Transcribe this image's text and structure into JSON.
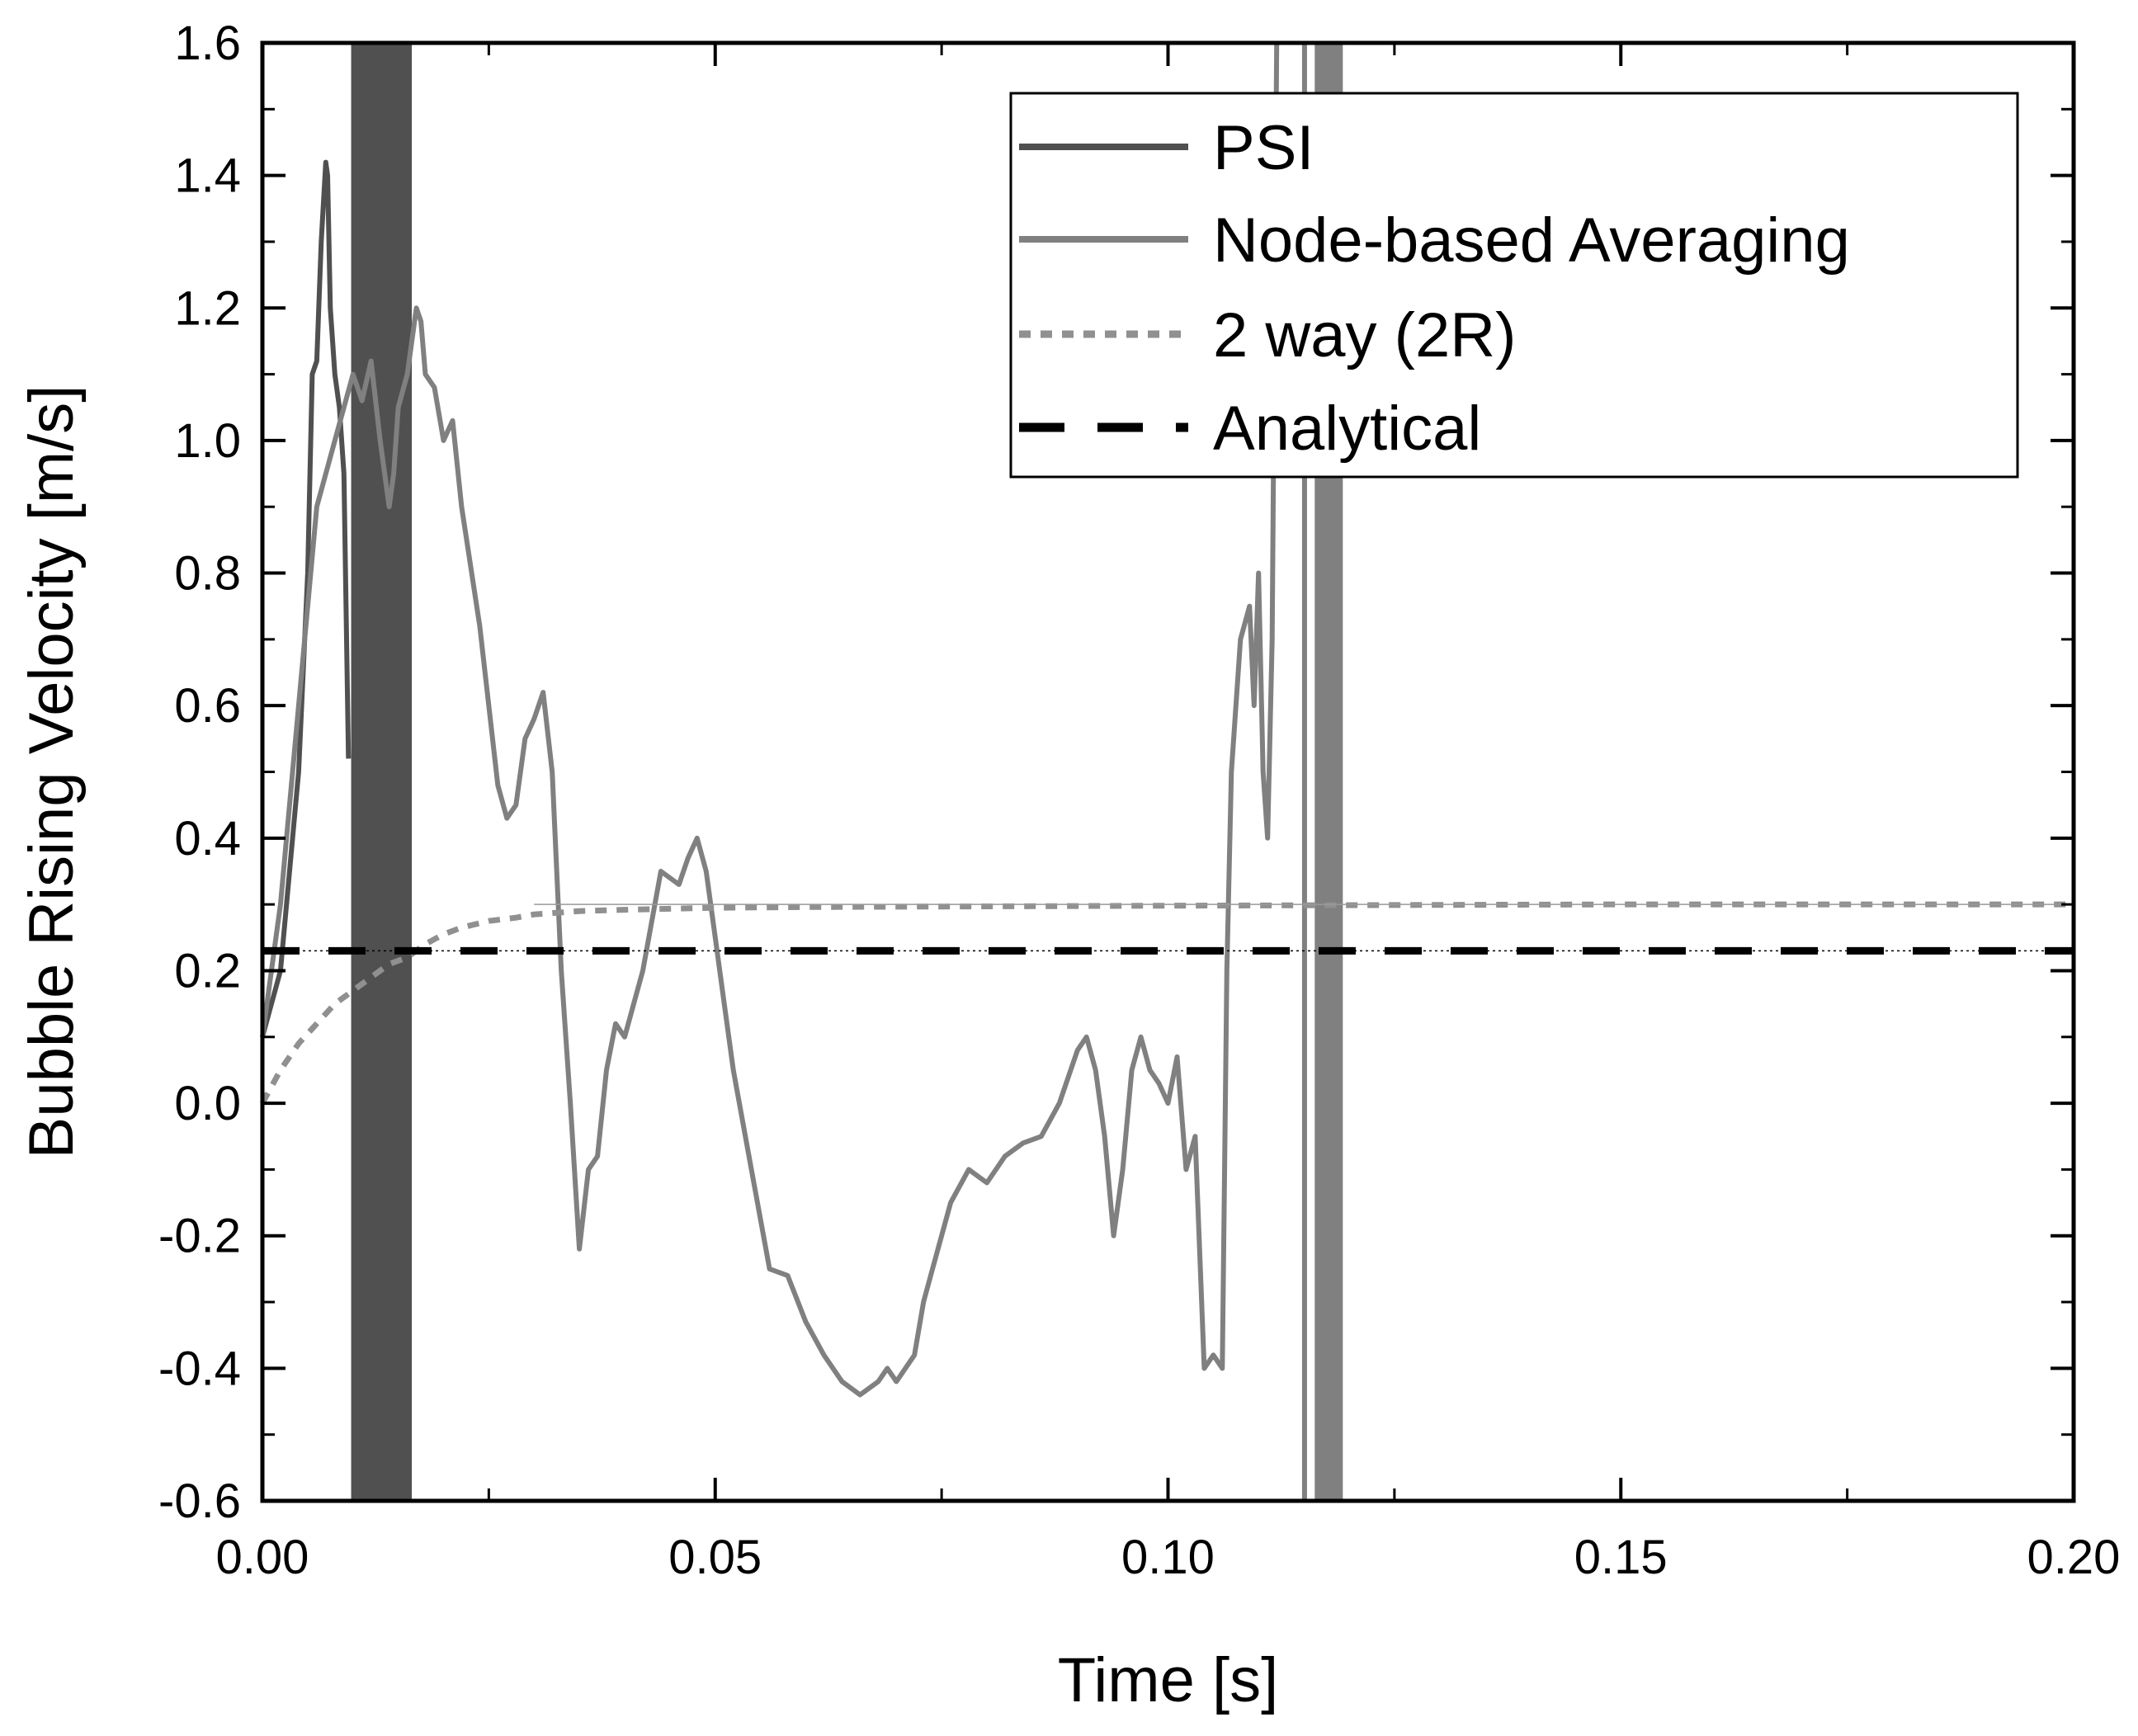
{
  "chart_data": {
    "type": "line",
    "xlabel": "Time [s]",
    "ylabel": "Bubble Rising Velocity [m/s]",
    "xlim": [
      0,
      0.2
    ],
    "ylim": [
      -0.6,
      1.6
    ],
    "xticks": [
      "0.00",
      "0.05",
      "0.10",
      "0.15",
      "0.20"
    ],
    "yticks": [
      "-0.6",
      "-0.4",
      "-0.2",
      "0.0",
      "0.2",
      "0.4",
      "0.6",
      "0.8",
      "1.0",
      "1.2",
      "1.4",
      "1.6"
    ],
    "grid": false,
    "legend_position": "top-right",
    "series": [
      {
        "name": "PSI",
        "color": "#505050",
        "style": "solid",
        "x": [
          0.0,
          0.002,
          0.004,
          0.005,
          0.0055,
          0.006,
          0.0065,
          0.007,
          0.0072,
          0.0075,
          0.008,
          0.0085,
          0.009,
          0.0095
        ],
        "y": [
          0.1,
          0.2,
          0.5,
          0.8,
          1.1,
          1.12,
          1.3,
          1.42,
          1.4,
          1.2,
          1.1,
          1.05,
          0.95,
          0.52
        ],
        "bands": [
          [
            0.0098,
            0.0165
          ]
        ]
      },
      {
        "name": "Node-based Averaging",
        "color": "#808080",
        "style": "solid",
        "x": [
          0.0,
          0.002,
          0.004,
          0.006,
          0.008,
          0.009,
          0.01,
          0.011,
          0.012,
          0.013,
          0.014,
          0.0145,
          0.015,
          0.016,
          0.017,
          0.0175,
          0.018,
          0.019,
          0.02,
          0.021,
          0.022,
          0.024,
          0.026,
          0.027,
          0.028,
          0.029,
          0.03,
          0.031,
          0.032,
          0.033,
          0.034,
          0.035,
          0.036,
          0.037,
          0.038,
          0.039,
          0.04,
          0.041,
          0.042,
          0.044,
          0.046,
          0.047,
          0.048,
          0.049,
          0.05,
          0.051,
          0.052,
          0.054,
          0.056,
          0.058,
          0.06,
          0.062,
          0.064,
          0.066,
          0.068,
          0.069,
          0.07,
          0.071,
          0.072,
          0.073,
          0.074,
          0.076,
          0.078,
          0.08,
          0.082,
          0.084,
          0.086,
          0.088,
          0.09,
          0.091,
          0.092,
          0.093,
          0.094,
          0.095,
          0.096,
          0.097,
          0.098,
          0.099,
          0.1,
          0.101,
          0.102,
          0.103,
          0.104,
          0.105,
          0.106,
          0.1065,
          0.107,
          0.108,
          0.109,
          0.1095,
          0.11,
          0.1105,
          0.111,
          0.1115,
          0.112
        ],
        "y": [
          0.1,
          0.3,
          0.6,
          0.9,
          1.0,
          1.05,
          1.1,
          1.06,
          1.12,
          1.0,
          0.9,
          0.95,
          1.05,
          1.1,
          1.2,
          1.18,
          1.1,
          1.08,
          1.0,
          1.03,
          0.9,
          0.72,
          0.48,
          0.43,
          0.45,
          0.55,
          0.58,
          0.62,
          0.5,
          0.2,
          0.0,
          -0.22,
          -0.1,
          -0.08,
          0.05,
          0.12,
          0.1,
          0.15,
          0.2,
          0.35,
          0.33,
          0.37,
          0.4,
          0.35,
          0.25,
          0.15,
          0.05,
          -0.1,
          -0.25,
          -0.26,
          -0.33,
          -0.38,
          -0.42,
          -0.44,
          -0.42,
          -0.4,
          -0.42,
          -0.4,
          -0.38,
          -0.3,
          -0.25,
          -0.15,
          -0.1,
          -0.12,
          -0.08,
          -0.06,
          -0.05,
          0.0,
          0.08,
          0.1,
          0.05,
          -0.05,
          -0.2,
          -0.1,
          0.05,
          0.1,
          0.05,
          0.03,
          0.0,
          0.07,
          -0.1,
          -0.05,
          -0.4,
          -0.38,
          -0.4,
          0.2,
          0.5,
          0.7,
          0.75,
          0.6,
          0.8,
          0.5,
          0.4,
          0.7,
          1.6
        ],
        "bands": [
          [
            0.1148,
            0.1152
          ],
          [
            0.1162,
            0.1193
          ]
        ]
      },
      {
        "name": "2 way (2R)",
        "color": "#909090",
        "style": "dotted",
        "x": [
          0.0,
          0.002,
          0.004,
          0.006,
          0.008,
          0.01,
          0.012,
          0.014,
          0.016,
          0.018,
          0.02,
          0.022,
          0.025,
          0.028,
          0.03,
          0.035,
          0.04,
          0.05,
          0.06,
          0.08,
          0.1,
          0.15,
          0.2
        ],
        "y": [
          0.0,
          0.05,
          0.09,
          0.12,
          0.15,
          0.17,
          0.19,
          0.21,
          0.22,
          0.24,
          0.255,
          0.265,
          0.275,
          0.28,
          0.285,
          0.29,
          0.292,
          0.295,
          0.296,
          0.297,
          0.298,
          0.3,
          0.3
        ]
      },
      {
        "name": "Analytical",
        "color": "#000000",
        "style": "dashed",
        "x": [
          0.0,
          0.2
        ],
        "y": [
          0.23,
          0.23
        ]
      }
    ]
  }
}
